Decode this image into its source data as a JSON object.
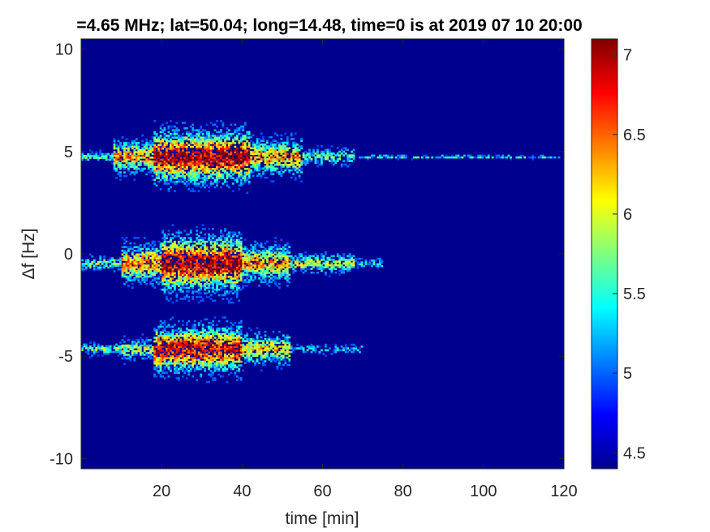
{
  "chart_data": {
    "type": "heatmap",
    "title": "=4.65 MHz;  lat=50.04; long=14.48, time=0 is at 2019 07 10 20:00",
    "xlabel": "time [min]",
    "ylabel": "Δf [Hz]",
    "xlim": [
      0,
      120
    ],
    "ylim": [
      -10.5,
      10.5
    ],
    "xticks": [
      20,
      40,
      60,
      80,
      100,
      120
    ],
    "yticks": [
      10,
      5,
      0,
      -5,
      -10
    ],
    "colorbar": {
      "range": [
        4.4,
        7.1
      ],
      "ticks": [
        4.5,
        5,
        5.5,
        6,
        6.5,
        7
      ],
      "colormap": "jet"
    },
    "background_value": 4.45,
    "bands": [
      {
        "center_hz": 4.7,
        "start_min": 0,
        "peak_value": 7.0,
        "segments": [
          {
            "t0": 0,
            "t1": 8,
            "width_hz": 0.4,
            "level": 0.45
          },
          {
            "t0": 8,
            "t1": 18,
            "width_hz": 1.4,
            "level": 0.7
          },
          {
            "t0": 18,
            "t1": 42,
            "width_hz": 2.2,
            "level": 0.95
          },
          {
            "t0": 42,
            "t1": 55,
            "width_hz": 1.5,
            "level": 0.7
          },
          {
            "t0": 55,
            "t1": 68,
            "width_hz": 0.7,
            "level": 0.45
          },
          {
            "t0": 68,
            "t1": 120,
            "width_hz": 0.15,
            "level": 0.4
          }
        ]
      },
      {
        "center_hz": -0.5,
        "start_min": 0,
        "peak_value": 7.0,
        "segments": [
          {
            "t0": 0,
            "t1": 10,
            "width_hz": 0.6,
            "level": 0.5
          },
          {
            "t0": 10,
            "t1": 20,
            "width_hz": 1.6,
            "level": 0.75
          },
          {
            "t0": 20,
            "t1": 40,
            "width_hz": 2.4,
            "level": 0.95
          },
          {
            "t0": 40,
            "t1": 52,
            "width_hz": 1.6,
            "level": 0.7
          },
          {
            "t0": 52,
            "t1": 68,
            "width_hz": 0.8,
            "level": 0.55
          },
          {
            "t0": 68,
            "t1": 75,
            "width_hz": 0.4,
            "level": 0.35
          }
        ]
      },
      {
        "center_hz": -4.7,
        "start_min": 0,
        "peak_value": 7.0,
        "segments": [
          {
            "t0": 0,
            "t1": 10,
            "width_hz": 0.5,
            "level": 0.45
          },
          {
            "t0": 10,
            "t1": 18,
            "width_hz": 0.9,
            "level": 0.55
          },
          {
            "t0": 18,
            "t1": 40,
            "width_hz": 2.0,
            "level": 0.9
          },
          {
            "t0": 40,
            "t1": 52,
            "width_hz": 1.3,
            "level": 0.65
          },
          {
            "t0": 52,
            "t1": 70,
            "width_hz": 0.4,
            "level": 0.3
          }
        ]
      }
    ]
  }
}
